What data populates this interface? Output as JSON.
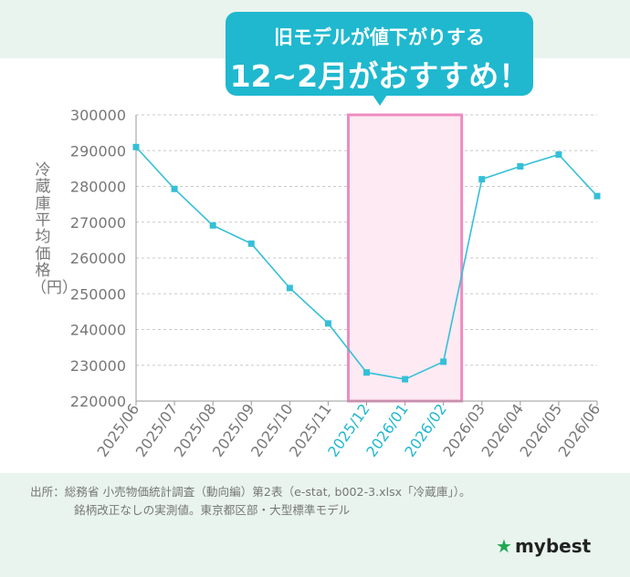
{
  "header": {
    "line1": "旧モデルが値下がりする",
    "line2": "12~2月がおすすめ！"
  },
  "chart_data": {
    "type": "line",
    "title": "",
    "xlabel": "",
    "ylabel": "冷蔵庫平均価格（円）",
    "categories": [
      "2025/06",
      "2025/07",
      "2025/08",
      "2025/09",
      "2025/10",
      "2025/11",
      "2025/12",
      "2026/01",
      "2026/02",
      "2026/03",
      "2026/04",
      "2026/05",
      "2026/06"
    ],
    "highlighted_categories": [
      "2025/12",
      "2026/01",
      "2026/02"
    ],
    "series": [
      {
        "values": [
          291000,
          279300,
          269100,
          264000,
          251600,
          241700,
          228000,
          226100,
          231000,
          282000,
          285600,
          288900,
          277300
        ]
      }
    ],
    "ylim": [
      220000,
      300000
    ],
    "yticks": [
      220000,
      230000,
      240000,
      250000,
      260000,
      270000,
      280000,
      290000,
      300000
    ],
    "grid": true,
    "colors": {
      "line": "#35bfd8",
      "highlight_border": "#ee8cc0",
      "highlight_fill": "#fdeaf2",
      "highlight_tick": "#1fb8cf"
    }
  },
  "source": {
    "line1": "出所：総務省 小売物価統計調査（動向編）第2表（e-stat, b002-3.xlsx「冷蔵庫」）。",
    "line2": "銘柄改正なしの実測値。東京都区部・大型標準モデル"
  },
  "logo": {
    "text": "mybest",
    "icon": "star-icon"
  }
}
